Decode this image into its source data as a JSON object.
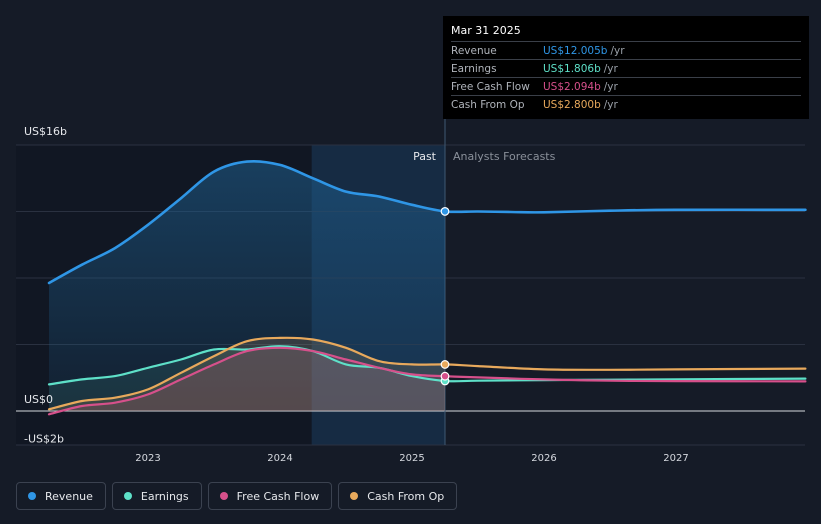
{
  "chart_data": {
    "type": "line",
    "title": "",
    "x_unit": "year",
    "y_unit": "US$ billions",
    "ylim": [
      -2,
      16
    ],
    "xlim": [
      2022.25,
      2027.98
    ],
    "y_tick_labels": [
      {
        "value": 16,
        "label": "US$16b"
      },
      {
        "value": 0,
        "label": "US$0"
      },
      {
        "value": -2,
        "label": "-US$2b"
      }
    ],
    "x_ticks": [
      {
        "value": 2023,
        "label": "2023"
      },
      {
        "value": 2024,
        "label": "2024"
      },
      {
        "value": 2025,
        "label": "2025"
      },
      {
        "value": 2026,
        "label": "2026"
      },
      {
        "value": 2027,
        "label": "2027"
      }
    ],
    "past_label": "Past",
    "forecast_label": "Analysts Forecasts",
    "divider_x": 2025.25,
    "highlight_start_x": 2024.24,
    "series": [
      {
        "name": "Revenue",
        "color": "#2f96e6",
        "points": [
          [
            2022.25,
            7.7
          ],
          [
            2022.5,
            8.8
          ],
          [
            2022.75,
            9.8
          ],
          [
            2023.0,
            11.2
          ],
          [
            2023.25,
            12.8
          ],
          [
            2023.5,
            14.4
          ],
          [
            2023.75,
            15.0
          ],
          [
            2024.0,
            14.8
          ],
          [
            2024.25,
            14.0
          ],
          [
            2024.5,
            13.2
          ],
          [
            2024.75,
            12.9
          ],
          [
            2025.0,
            12.4
          ],
          [
            2025.25,
            12.005
          ],
          [
            2025.5,
            12.0
          ],
          [
            2025.75,
            11.97
          ],
          [
            2026.0,
            11.95
          ],
          [
            2026.5,
            12.05
          ],
          [
            2027.0,
            12.1
          ],
          [
            2027.98,
            12.1
          ]
        ]
      },
      {
        "name": "Earnings",
        "color": "#5ee0c8",
        "points": [
          [
            2022.25,
            1.6
          ],
          [
            2022.5,
            1.9
          ],
          [
            2022.75,
            2.1
          ],
          [
            2023.0,
            2.6
          ],
          [
            2023.25,
            3.1
          ],
          [
            2023.5,
            3.7
          ],
          [
            2023.75,
            3.7
          ],
          [
            2024.0,
            3.9
          ],
          [
            2024.25,
            3.6
          ],
          [
            2024.5,
            2.8
          ],
          [
            2024.75,
            2.6
          ],
          [
            2025.0,
            2.1
          ],
          [
            2025.25,
            1.806
          ],
          [
            2025.5,
            1.82
          ],
          [
            2026.0,
            1.86
          ],
          [
            2026.5,
            1.88
          ],
          [
            2027.0,
            1.9
          ],
          [
            2027.98,
            1.95
          ]
        ]
      },
      {
        "name": "Free Cash Flow",
        "color": "#d6508b",
        "points": [
          [
            2022.25,
            -0.2
          ],
          [
            2022.5,
            0.3
          ],
          [
            2022.75,
            0.5
          ],
          [
            2023.0,
            1.0
          ],
          [
            2023.25,
            1.9
          ],
          [
            2023.5,
            2.8
          ],
          [
            2023.75,
            3.6
          ],
          [
            2024.0,
            3.8
          ],
          [
            2024.25,
            3.6
          ],
          [
            2024.5,
            3.1
          ],
          [
            2024.75,
            2.6
          ],
          [
            2025.0,
            2.2
          ],
          [
            2025.25,
            2.094
          ],
          [
            2025.5,
            2.02
          ],
          [
            2026.0,
            1.9
          ],
          [
            2026.5,
            1.82
          ],
          [
            2027.0,
            1.8
          ],
          [
            2027.98,
            1.78
          ]
        ]
      },
      {
        "name": "Cash From Op",
        "color": "#e8a95c",
        "points": [
          [
            2022.25,
            0.1
          ],
          [
            2022.5,
            0.6
          ],
          [
            2022.75,
            0.8
          ],
          [
            2023.0,
            1.3
          ],
          [
            2023.25,
            2.3
          ],
          [
            2023.5,
            3.3
          ],
          [
            2023.75,
            4.2
          ],
          [
            2024.0,
            4.4
          ],
          [
            2024.25,
            4.3
          ],
          [
            2024.5,
            3.8
          ],
          [
            2024.75,
            3.0
          ],
          [
            2025.0,
            2.8
          ],
          [
            2025.25,
            2.8
          ],
          [
            2025.5,
            2.7
          ],
          [
            2026.0,
            2.5
          ],
          [
            2026.5,
            2.48
          ],
          [
            2027.0,
            2.5
          ],
          [
            2027.98,
            2.55
          ]
        ]
      }
    ]
  },
  "tooltip": {
    "date": "Mar 31 2025",
    "unit": "/yr",
    "rows": [
      {
        "name": "Revenue",
        "value": "US$12.005b",
        "color": "#2f96e6"
      },
      {
        "name": "Earnings",
        "value": "US$1.806b",
        "color": "#5ee0c8"
      },
      {
        "name": "Free Cash Flow",
        "value": "US$2.094b",
        "color": "#d6508b"
      },
      {
        "name": "Cash From Op",
        "value": "US$2.800b",
        "color": "#e8a95c"
      }
    ]
  },
  "legend": [
    {
      "label": "Revenue",
      "color": "#2f96e6"
    },
    {
      "label": "Earnings",
      "color": "#5ee0c8"
    },
    {
      "label": "Free Cash Flow",
      "color": "#d6508b"
    },
    {
      "label": "Cash From Op",
      "color": "#e8a95c"
    }
  ]
}
